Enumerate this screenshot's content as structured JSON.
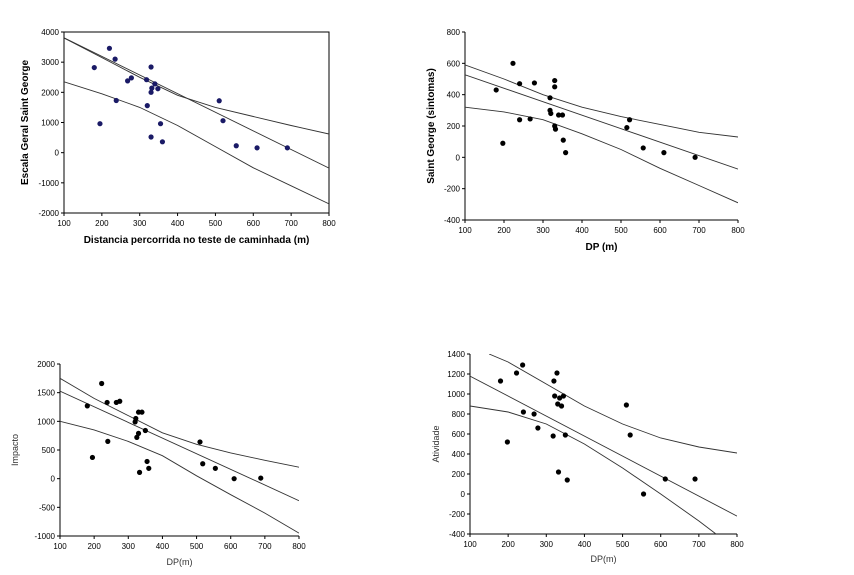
{
  "chart_data": [
    {
      "type": "scatter",
      "xlabel": "Distancia percorrida no teste de caminhada (m)",
      "ylabel": "Escala Geral Saint George",
      "xlim": [
        100,
        800
      ],
      "ylim": [
        -2000,
        4000
      ],
      "xticks": [
        "100",
        "200",
        "300",
        "400",
        "500",
        "600",
        "700",
        "800"
      ],
      "yticks": [
        "-2000",
        "-1000",
        "0",
        "1000",
        "2000",
        "3000",
        "4000"
      ],
      "point_color": "#1a1a66",
      "points": [
        [
          180,
          2820
        ],
        [
          195,
          960
        ],
        [
          220,
          3460
        ],
        [
          235,
          3100
        ],
        [
          238,
          1730
        ],
        [
          268,
          2380
        ],
        [
          278,
          2480
        ],
        [
          318,
          2420
        ],
        [
          320,
          1560
        ],
        [
          330,
          2840
        ],
        [
          330,
          2000
        ],
        [
          332,
          2140
        ],
        [
          340,
          2280
        ],
        [
          348,
          2120
        ],
        [
          355,
          960
        ],
        [
          360,
          360
        ],
        [
          330,
          520
        ],
        [
          510,
          1720
        ],
        [
          520,
          1060
        ],
        [
          555,
          230
        ],
        [
          610,
          160
        ],
        [
          690,
          160
        ]
      ],
      "fit": {
        "intercept": 4424,
        "slope": -6.17
      },
      "band_upper": [
        [
          100,
          3800
        ],
        [
          200,
          3150
        ],
        [
          300,
          2500
        ],
        [
          400,
          1900
        ],
        [
          500,
          1500
        ],
        [
          600,
          1200
        ],
        [
          700,
          900
        ],
        [
          800,
          620
        ]
      ],
      "band_lower": [
        [
          100,
          2350
        ],
        [
          200,
          1950
        ],
        [
          300,
          1500
        ],
        [
          400,
          900
        ],
        [
          500,
          200
        ],
        [
          600,
          -500
        ],
        [
          700,
          -1100
        ],
        [
          800,
          -1700
        ]
      ]
    },
    {
      "type": "scatter",
      "xlabel": "DP (m)",
      "ylabel": "Saint George (sintomas)",
      "xlim": [
        100,
        800
      ],
      "ylim": [
        -400,
        800
      ],
      "xticks": [
        "100",
        "200",
        "300",
        "400",
        "500",
        "600",
        "700",
        "800"
      ],
      "yticks": [
        "-400",
        "-200",
        "0",
        "200",
        "400",
        "600",
        "800"
      ],
      "point_color": "#000000",
      "points": [
        [
          180,
          430
        ],
        [
          197,
          90
        ],
        [
          223,
          600
        ],
        [
          240,
          470
        ],
        [
          240,
          240
        ],
        [
          267,
          245
        ],
        [
          278,
          475
        ],
        [
          318,
          380
        ],
        [
          318,
          300
        ],
        [
          320,
          280
        ],
        [
          330,
          490
        ],
        [
          330,
          450
        ],
        [
          330,
          200
        ],
        [
          332,
          180
        ],
        [
          340,
          270
        ],
        [
          350,
          270
        ],
        [
          352,
          110
        ],
        [
          358,
          30
        ],
        [
          515,
          190
        ],
        [
          522,
          240
        ],
        [
          557,
          60
        ],
        [
          610,
          30
        ],
        [
          690,
          0
        ]
      ],
      "fit": {
        "intercept": 613,
        "slope": -0.86
      },
      "band_upper": [
        [
          100,
          590
        ],
        [
          200,
          500
        ],
        [
          300,
          400
        ],
        [
          400,
          320
        ],
        [
          500,
          260
        ],
        [
          600,
          210
        ],
        [
          700,
          160
        ],
        [
          800,
          130
        ]
      ],
      "band_lower": [
        [
          100,
          320
        ],
        [
          200,
          290
        ],
        [
          300,
          240
        ],
        [
          400,
          150
        ],
        [
          500,
          50
        ],
        [
          600,
          -70
        ],
        [
          700,
          -180
        ],
        [
          800,
          -290
        ]
      ]
    },
    {
      "type": "scatter",
      "xlabel": "DP(m)",
      "ylabel": "Impacto",
      "xlim": [
        100,
        800
      ],
      "ylim": [
        -1000,
        2000
      ],
      "xticks": [
        "100",
        "200",
        "300",
        "400",
        "500",
        "600",
        "700",
        "800"
      ],
      "yticks": [
        "-1000",
        "-500",
        "0",
        "500",
        "1000",
        "1500",
        "2000"
      ],
      "point_color": "#000000",
      "points": [
        [
          180,
          1270
        ],
        [
          195,
          370
        ],
        [
          222,
          1660
        ],
        [
          238,
          1330
        ],
        [
          240,
          650
        ],
        [
          265,
          1330
        ],
        [
          275,
          1350
        ],
        [
          320,
          990
        ],
        [
          322,
          1050
        ],
        [
          325,
          720
        ],
        [
          330,
          790
        ],
        [
          330,
          1160
        ],
        [
          333,
          110
        ],
        [
          340,
          1160
        ],
        [
          350,
          840
        ],
        [
          355,
          300
        ],
        [
          360,
          180
        ],
        [
          510,
          640
        ],
        [
          518,
          260
        ],
        [
          555,
          180
        ],
        [
          610,
          0
        ],
        [
          688,
          10
        ]
      ],
      "fit": {
        "intercept": 1800,
        "slope": -2.73
      },
      "band_upper": [
        [
          100,
          1750
        ],
        [
          200,
          1400
        ],
        [
          300,
          1100
        ],
        [
          400,
          800
        ],
        [
          500,
          600
        ],
        [
          600,
          450
        ],
        [
          700,
          320
        ],
        [
          800,
          200
        ]
      ],
      "band_lower": [
        [
          100,
          1000
        ],
        [
          200,
          850
        ],
        [
          300,
          650
        ],
        [
          400,
          400
        ],
        [
          500,
          50
        ],
        [
          600,
          -280
        ],
        [
          700,
          -600
        ],
        [
          800,
          -950
        ]
      ]
    },
    {
      "type": "scatter",
      "xlabel": "DP(m)",
      "ylabel": "Atividade",
      "xlim": [
        100,
        800
      ],
      "ylim": [
        -400,
        1400
      ],
      "xticks": [
        "100",
        "200",
        "300",
        "400",
        "500",
        "600",
        "700",
        "800"
      ],
      "yticks": [
        "-400",
        "-200",
        "0",
        "200",
        "400",
        "600",
        "800",
        "1000",
        "1200",
        "1400"
      ],
      "point_color": "#000000",
      "points": [
        [
          180,
          1130
        ],
        [
          198,
          520
        ],
        [
          222,
          1210
        ],
        [
          238,
          1290
        ],
        [
          240,
          820
        ],
        [
          268,
          800
        ],
        [
          278,
          660
        ],
        [
          318,
          580
        ],
        [
          320,
          1130
        ],
        [
          322,
          980
        ],
        [
          328,
          1210
        ],
        [
          330,
          900
        ],
        [
          332,
          220
        ],
        [
          335,
          960
        ],
        [
          340,
          880
        ],
        [
          345,
          980
        ],
        [
          350,
          590
        ],
        [
          355,
          140
        ],
        [
          510,
          890
        ],
        [
          520,
          590
        ],
        [
          555,
          0
        ],
        [
          612,
          150
        ],
        [
          690,
          150
        ]
      ],
      "fit": {
        "intercept": 1379,
        "slope": -2.0
      },
      "band_upper": [
        [
          150,
          1400
        ],
        [
          200,
          1320
        ],
        [
          300,
          1100
        ],
        [
          400,
          880
        ],
        [
          500,
          700
        ],
        [
          600,
          560
        ],
        [
          700,
          470
        ],
        [
          800,
          410
        ]
      ],
      "band_lower": [
        [
          100,
          880
        ],
        [
          200,
          820
        ],
        [
          300,
          700
        ],
        [
          400,
          500
        ],
        [
          500,
          260
        ],
        [
          600,
          0
        ],
        [
          700,
          -270
        ],
        [
          745,
          -400
        ]
      ]
    }
  ]
}
